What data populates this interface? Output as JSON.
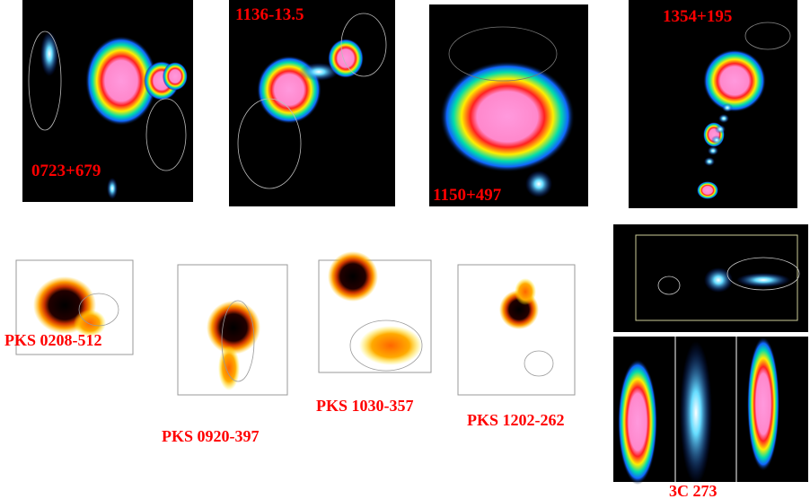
{
  "panels": [
    {
      "label": "0723+679"
    },
    {
      "label": "1136-13.5"
    },
    {
      "label": "1150+497"
    },
    {
      "label": "1354+195"
    },
    {
      "label": "PKS 0208-512"
    },
    {
      "label": "PKS 0920-397"
    },
    {
      "label": "PKS 1030-357"
    },
    {
      "label": "PKS 1202-262"
    },
    {
      "label": "3C 273"
    }
  ]
}
